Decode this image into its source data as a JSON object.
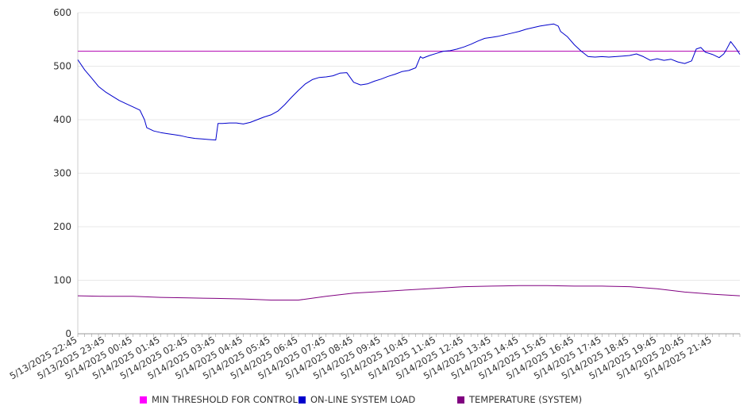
{
  "chart_data": {
    "type": "line",
    "title": "",
    "xlabel": "",
    "ylabel": "",
    "ylim": [
      0,
      600
    ],
    "yticks": [
      0,
      100,
      200,
      300,
      400,
      500,
      600
    ],
    "x_tick_labels": [
      "5/13/2025 22:45",
      "5/13/2025 23:45",
      "5/14/2025 00:45",
      "5/14/2025 01:45",
      "5/14/2025 02:45",
      "5/14/2025 03:45",
      "5/14/2025 04:45",
      "5/14/2025 05:45",
      "5/14/2025 06:45",
      "5/14/2025 07:45",
      "5/14/2025 08:45",
      "5/14/2025 09:45",
      "5/14/2025 10:45",
      "5/14/2025 11:45",
      "5/14/2025 12:45",
      "5/14/2025 13:45",
      "5/14/2025 14:45",
      "5/14/2025 15:45",
      "5/14/2025 16:45",
      "5/14/2025 17:45",
      "5/14/2025 18:45",
      "5/14/2025 19:45",
      "5/14/2025 20:45",
      "5/14/2025 21:45"
    ],
    "x_start": "5/13/2025 22:45",
    "x_end": "5/14/2025 22:45",
    "grid": "horizontal",
    "legend_position": "bottom",
    "series": [
      {
        "name": "MIN THRESHOLD FOR CONTROL",
        "color": "#b000b0",
        "points": [
          [
            "5/13/2025 22:45",
            528
          ],
          [
            "5/14/2025 22:45",
            528
          ]
        ]
      },
      {
        "name": "ON-LINE SYSTEM LOAD",
        "color": "#0000cc",
        "points": [
          [
            "5/13/2025 22:45",
            512
          ],
          [
            "5/13/2025 23:00",
            493
          ],
          [
            "5/13/2025 23:15",
            478
          ],
          [
            "5/13/2025 23:30",
            462
          ],
          [
            "5/13/2025 23:45",
            452
          ],
          [
            "5/14/2025 00:00",
            444
          ],
          [
            "5/14/2025 00:15",
            436
          ],
          [
            "5/14/2025 00:30",
            430
          ],
          [
            "5/14/2025 00:45",
            424
          ],
          [
            "5/14/2025 01:00",
            418
          ],
          [
            "5/14/2025 01:10",
            400
          ],
          [
            "5/14/2025 01:15",
            385
          ],
          [
            "5/14/2025 01:30",
            379
          ],
          [
            "5/14/2025 01:45",
            376
          ],
          [
            "5/14/2025 02:00",
            374
          ],
          [
            "5/14/2025 02:15",
            372
          ],
          [
            "5/14/2025 02:30",
            370
          ],
          [
            "5/14/2025 02:45",
            367
          ],
          [
            "5/14/2025 03:00",
            365
          ],
          [
            "5/14/2025 03:15",
            364
          ],
          [
            "5/14/2025 03:30",
            363
          ],
          [
            "5/14/2025 03:45",
            362
          ],
          [
            "5/14/2025 03:50",
            393
          ],
          [
            "5/14/2025 04:00",
            393
          ],
          [
            "5/14/2025 04:15",
            394
          ],
          [
            "5/14/2025 04:30",
            394
          ],
          [
            "5/14/2025 04:45",
            392
          ],
          [
            "5/14/2025 05:00",
            395
          ],
          [
            "5/14/2025 05:15",
            400
          ],
          [
            "5/14/2025 05:30",
            405
          ],
          [
            "5/14/2025 05:45",
            409
          ],
          [
            "5/14/2025 06:00",
            416
          ],
          [
            "5/14/2025 06:15",
            428
          ],
          [
            "5/14/2025 06:30",
            442
          ],
          [
            "5/14/2025 06:45",
            455
          ],
          [
            "5/14/2025 07:00",
            467
          ],
          [
            "5/14/2025 07:15",
            475
          ],
          [
            "5/14/2025 07:30",
            479
          ],
          [
            "5/14/2025 07:45",
            480
          ],
          [
            "5/14/2025 08:00",
            482
          ],
          [
            "5/14/2025 08:15",
            487
          ],
          [
            "5/14/2025 08:30",
            488
          ],
          [
            "5/14/2025 08:45",
            470
          ],
          [
            "5/14/2025 09:00",
            465
          ],
          [
            "5/14/2025 09:15",
            467
          ],
          [
            "5/14/2025 09:30",
            472
          ],
          [
            "5/14/2025 09:45",
            476
          ],
          [
            "5/14/2025 10:00",
            481
          ],
          [
            "5/14/2025 10:15",
            485
          ],
          [
            "5/14/2025 10:30",
            490
          ],
          [
            "5/14/2025 10:45",
            492
          ],
          [
            "5/14/2025 11:00",
            497
          ],
          [
            "5/14/2025 11:10",
            518
          ],
          [
            "5/14/2025 11:15",
            515
          ],
          [
            "5/14/2025 11:30",
            520
          ],
          [
            "5/14/2025 11:45",
            524
          ],
          [
            "5/14/2025 12:00",
            528
          ],
          [
            "5/14/2025 12:15",
            529
          ],
          [
            "5/14/2025 12:30",
            532
          ],
          [
            "5/14/2025 12:45",
            536
          ],
          [
            "5/14/2025 13:00",
            541
          ],
          [
            "5/14/2025 13:15",
            547
          ],
          [
            "5/14/2025 13:30",
            552
          ],
          [
            "5/14/2025 13:45",
            554
          ],
          [
            "5/14/2025 14:00",
            556
          ],
          [
            "5/14/2025 14:15",
            559
          ],
          [
            "5/14/2025 14:30",
            562
          ],
          [
            "5/14/2025 14:45",
            565
          ],
          [
            "5/14/2025 15:00",
            569
          ],
          [
            "5/14/2025 15:15",
            572
          ],
          [
            "5/14/2025 15:30",
            575
          ],
          [
            "5/14/2025 15:45",
            577
          ],
          [
            "5/14/2025 16:00",
            579
          ],
          [
            "5/14/2025 16:10",
            575
          ],
          [
            "5/14/2025 16:15",
            565
          ],
          [
            "5/14/2025 16:30",
            555
          ],
          [
            "5/14/2025 16:45",
            540
          ],
          [
            "5/14/2025 17:00",
            528
          ],
          [
            "5/14/2025 17:15",
            518
          ],
          [
            "5/14/2025 17:30",
            517
          ],
          [
            "5/14/2025 17:45",
            518
          ],
          [
            "5/14/2025 18:00",
            517
          ],
          [
            "5/14/2025 18:15",
            518
          ],
          [
            "5/14/2025 18:30",
            519
          ],
          [
            "5/14/2025 18:45",
            520
          ],
          [
            "5/14/2025 19:00",
            523
          ],
          [
            "5/14/2025 19:15",
            518
          ],
          [
            "5/14/2025 19:30",
            511
          ],
          [
            "5/14/2025 19:45",
            514
          ],
          [
            "5/14/2025 20:00",
            511
          ],
          [
            "5/14/2025 20:15",
            513
          ],
          [
            "5/14/2025 20:30",
            508
          ],
          [
            "5/14/2025 20:45",
            505
          ],
          [
            "5/14/2025 21:00",
            510
          ],
          [
            "5/14/2025 21:10",
            532
          ],
          [
            "5/14/2025 21:20",
            535
          ],
          [
            "5/14/2025 21:30",
            526
          ],
          [
            "5/14/2025 21:45",
            522
          ],
          [
            "5/14/2025 22:00",
            516
          ],
          [
            "5/14/2025 22:10",
            523
          ],
          [
            "5/14/2025 22:15",
            530
          ],
          [
            "5/14/2025 22:25",
            546
          ],
          [
            "5/14/2025 22:35",
            535
          ],
          [
            "5/14/2025 22:45",
            522
          ]
        ]
      },
      {
        "name": "TEMPERATURE (SYSTEM)",
        "color": "#800080",
        "points": [
          [
            "5/13/2025 22:45",
            71
          ],
          [
            "5/13/2025 23:45",
            70
          ],
          [
            "5/14/2025 00:45",
            70
          ],
          [
            "5/14/2025 01:45",
            68
          ],
          [
            "5/14/2025 02:45",
            67
          ],
          [
            "5/14/2025 03:45",
            66
          ],
          [
            "5/14/2025 04:45",
            65
          ],
          [
            "5/14/2025 05:45",
            63
          ],
          [
            "5/14/2025 06:45",
            63
          ],
          [
            "5/14/2025 07:45",
            70
          ],
          [
            "5/14/2025 08:45",
            76
          ],
          [
            "5/14/2025 09:45",
            79
          ],
          [
            "5/14/2025 10:45",
            82
          ],
          [
            "5/14/2025 11:45",
            85
          ],
          [
            "5/14/2025 12:45",
            88
          ],
          [
            "5/14/2025 13:45",
            89
          ],
          [
            "5/14/2025 14:45",
            90
          ],
          [
            "5/14/2025 15:45",
            90
          ],
          [
            "5/14/2025 16:45",
            89
          ],
          [
            "5/14/2025 17:45",
            89
          ],
          [
            "5/14/2025 18:45",
            88
          ],
          [
            "5/14/2025 19:45",
            84
          ],
          [
            "5/14/2025 20:45",
            78
          ],
          [
            "5/14/2025 21:45",
            74
          ],
          [
            "5/14/2025 22:45",
            71
          ]
        ]
      }
    ]
  }
}
